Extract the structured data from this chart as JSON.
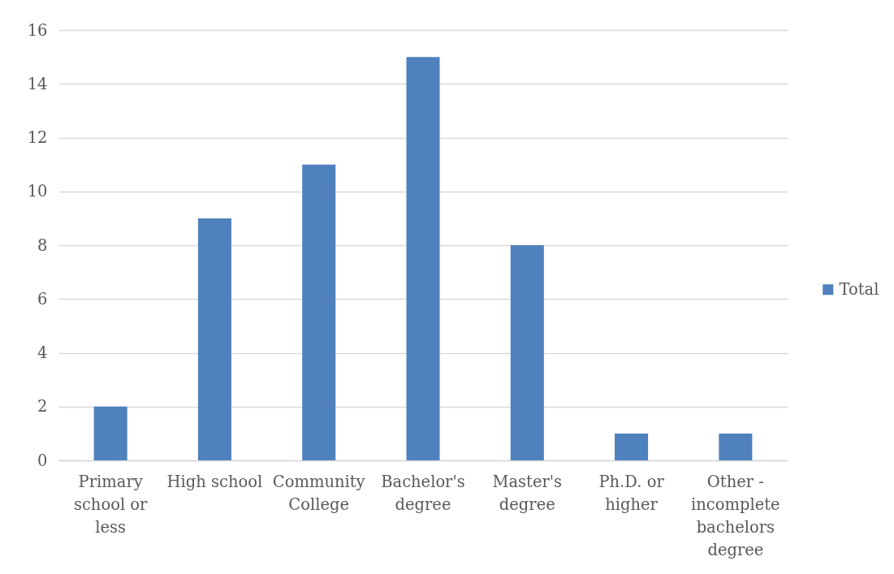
{
  "chart_data": {
    "type": "bar",
    "categories": [
      "Primary school or less",
      "High school",
      "Community College",
      "Bachelor's degree",
      "Master's degree",
      "Ph.D. or higher",
      "Other - incomplete bachelors degree"
    ],
    "series": [
      {
        "name": "Total",
        "color": "#4f81bd",
        "values": [
          2,
          9,
          11,
          15,
          8,
          1,
          1
        ]
      }
    ],
    "ylim": [
      0,
      16
    ],
    "yticks": [
      0,
      2,
      4,
      6,
      8,
      10,
      12,
      14,
      16
    ],
    "grid": "y",
    "legend": "right"
  }
}
